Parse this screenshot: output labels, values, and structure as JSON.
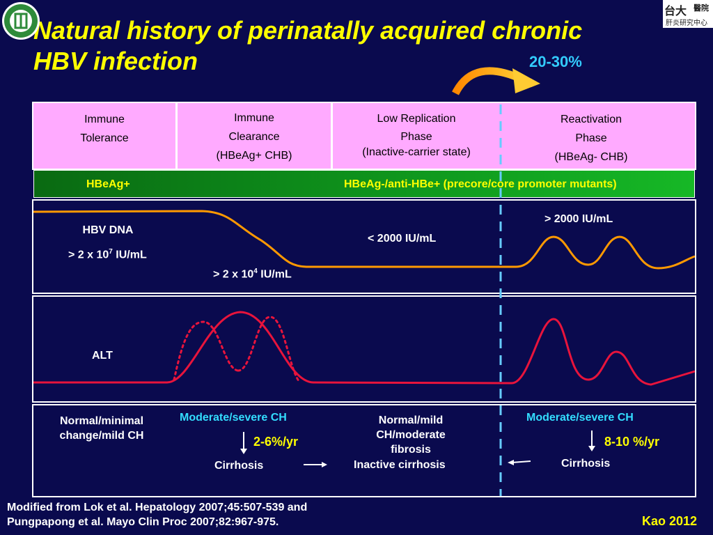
{
  "slide": {
    "title_line1": "Natural history of perinatally acquired chronic",
    "title_line2": "HBV infection",
    "logo_right_text1": "台大",
    "logo_right_text2": "醫院",
    "logo_right_text3": "肝炎研究中心",
    "reactivation_rate": "20-30%"
  },
  "phases": [
    {
      "line1": "Immune",
      "line2": "Tolerance",
      "line3": ""
    },
    {
      "line1": "Immune",
      "line2": "Clearance",
      "line3": "(HBeAg+ CHB)"
    },
    {
      "line1": "Low Replication",
      "line2": "Phase",
      "line3": "(Inactive-carrier state)"
    },
    {
      "line1": "Reactivation",
      "line2": "Phase",
      "line3": "(HBeAg- CHB)"
    }
  ],
  "serology": {
    "left": "HBeAg+",
    "right": "HBeAg-/anti-HBe+ (precore/core promoter mutants)"
  },
  "dna_panel": {
    "label": "HBV DNA",
    "val1_base": "> 2 x 10",
    "val1_exp": "7",
    "val1_unit": " IU/mL",
    "val2_base": "> 2 x 10",
    "val2_exp": "4",
    "val2_unit": " IU/mL",
    "low_val": "< 2000 IU/mL",
    "high_val": "> 2000 IU/mL"
  },
  "alt_panel": {
    "label": "ALT"
  },
  "outcomes": {
    "tolerance_1": "Normal/minimal",
    "tolerance_2": "change/mild CH",
    "clearance_ch": "Moderate/severe CH",
    "clearance_rate": "2-6%/yr",
    "clearance_cirrhosis": "Cirrhosis",
    "inactive_1": "Normal/mild",
    "inactive_2": "CH/moderate",
    "inactive_3": "fibrosis",
    "inactive_cirrhosis": "Inactive cirrhosis",
    "react_ch": "Moderate/severe CH",
    "react_rate": "8-10 %/yr",
    "react_cirrhosis": "Cirrhosis"
  },
  "footer": {
    "line1": "Modified from Lok et al. Hepatology 2007;45:507-539 and",
    "line2": "Pungpapong et al. Mayo Clin Proc 2007;82:967-975.",
    "author": "Kao 2012"
  },
  "colors": {
    "background": "#0a0a4e",
    "title": "#ffff00",
    "phase_box": "#ffaaff",
    "dna_curve": "#ff9900",
    "alt_curve": "#e8143c",
    "divider": "#66ccff",
    "cyan_text": "#33ddff"
  }
}
